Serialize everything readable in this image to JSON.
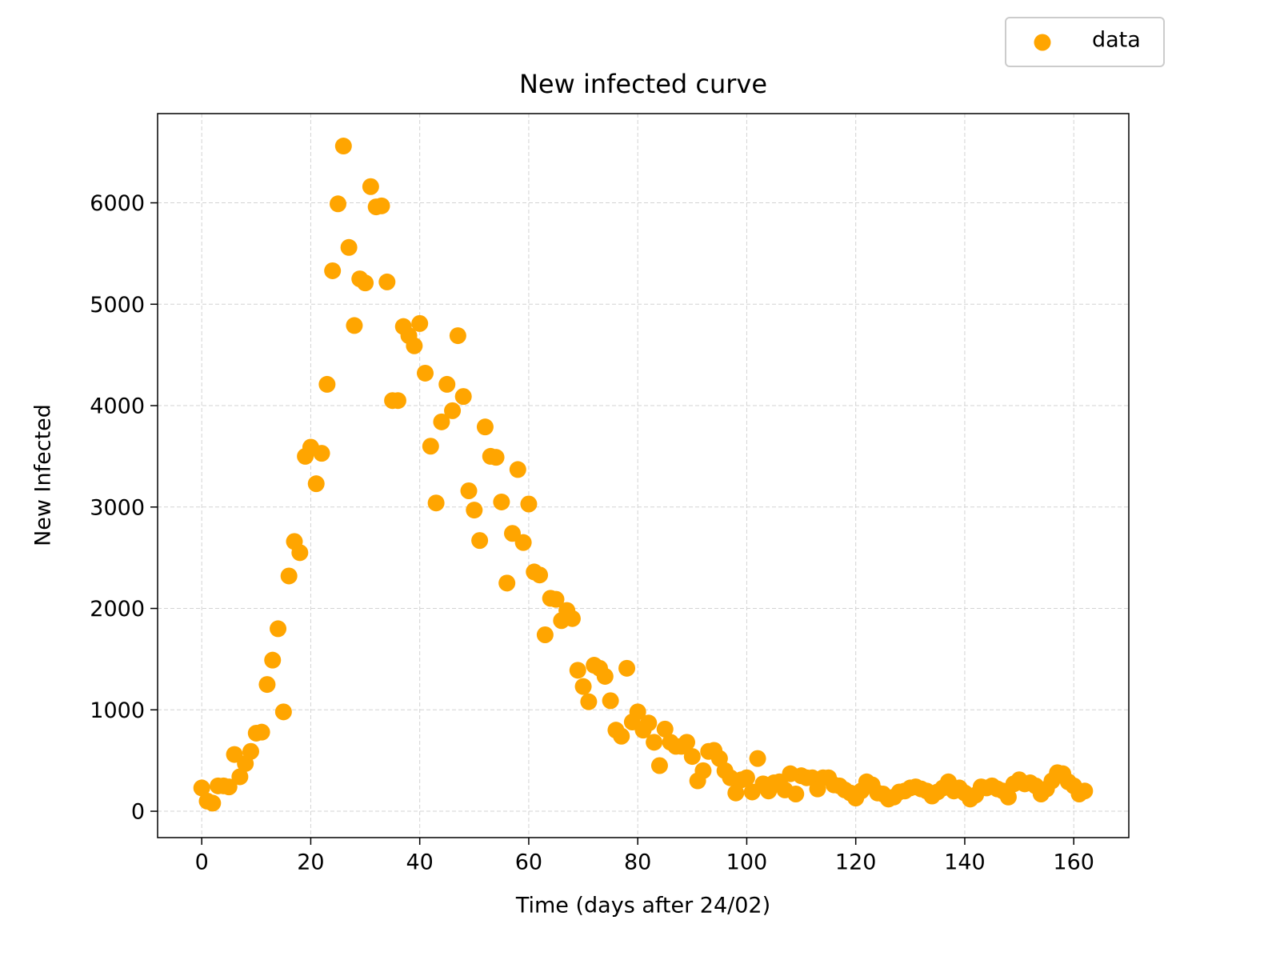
{
  "chart_data": {
    "type": "scatter",
    "title": "New infected curve",
    "x_label": "Time (days after 24/02)",
    "y_label": "New Infected",
    "xlim": [
      -8.1,
      170.1
    ],
    "ylim": [
      -260,
      6880
    ],
    "xticks": [
      0,
      20,
      40,
      60,
      80,
      100,
      120,
      140,
      160
    ],
    "yticks": [
      0,
      1000,
      2000,
      3000,
      4000,
      5000,
      6000
    ],
    "grid": true,
    "legend": "upper right",
    "series": [
      {
        "name": "data",
        "color": "#ffa500",
        "x": [
          0,
          1,
          2,
          3,
          4,
          5,
          6,
          7,
          8,
          9,
          10,
          11,
          12,
          13,
          14,
          15,
          16,
          17,
          18,
          19,
          20,
          21,
          22,
          23,
          24,
          25,
          26,
          27,
          28,
          29,
          30,
          31,
          32,
          33,
          34,
          35,
          36,
          37,
          38,
          39,
          40,
          41,
          42,
          43,
          44,
          45,
          46,
          47,
          48,
          49,
          50,
          51,
          52,
          53,
          54,
          55,
          56,
          57,
          58,
          59,
          60,
          61,
          62,
          63,
          64,
          65,
          66,
          67,
          68,
          69,
          70,
          71,
          72,
          73,
          74,
          75,
          76,
          77,
          78,
          79,
          80,
          81,
          82,
          83,
          84,
          85,
          86,
          87,
          88,
          89,
          90,
          91,
          92,
          93,
          94,
          95,
          96,
          97,
          98,
          99,
          100,
          101,
          102,
          103,
          104,
          105,
          106,
          107,
          108,
          109,
          110,
          111,
          112,
          113,
          114,
          115,
          116,
          117,
          118,
          119,
          120,
          121,
          122,
          123,
          124,
          125,
          126,
          127,
          128,
          129,
          130,
          131,
          132,
          133,
          134,
          135,
          136,
          137,
          138,
          139,
          140,
          141,
          142,
          143,
          144,
          145,
          146,
          147,
          148,
          149,
          150,
          151,
          152,
          153,
          154,
          155,
          156,
          157,
          158,
          159,
          160,
          161,
          162
        ],
        "values": [
          230,
          100,
          80,
          250,
          250,
          240,
          560,
          340,
          470,
          590,
          770,
          780,
          1250,
          1490,
          1800,
          980,
          2320,
          2660,
          2550,
          3500,
          3590,
          3230,
          3530,
          4210,
          5330,
          5990,
          6560,
          5560,
          4790,
          5250,
          5210,
          6160,
          5960,
          5970,
          5220,
          4050,
          4050,
          4780,
          4690,
          4590,
          4810,
          4320,
          3600,
          3040,
          3840,
          4210,
          3950,
          4690,
          4090,
          3160,
          2970,
          2670,
          3790,
          3500,
          3490,
          3050,
          2250,
          2740,
          3370,
          2650,
          3030,
          2360,
          2330,
          1740,
          2100,
          2090,
          1880,
          1980,
          1900,
          1390,
          1230,
          1080,
          1440,
          1410,
          1330,
          1090,
          800,
          740,
          1410,
          880,
          980,
          800,
          870,
          680,
          450,
          810,
          680,
          640,
          640,
          680,
          540,
          300,
          400,
          590,
          600,
          520,
          400,
          330,
          180,
          310,
          330,
          190,
          520,
          270,
          200,
          280,
          290,
          210,
          370,
          170,
          350,
          330,
          330,
          220,
          330,
          330,
          260,
          250,
          210,
          180,
          130,
          200,
          290,
          260,
          180,
          170,
          120,
          140,
          190,
          200,
          230,
          240,
          220,
          200,
          150,
          190,
          230,
          290,
          200,
          230,
          180,
          120,
          160,
          240,
          230,
          250,
          220,
          200,
          140,
          270,
          310,
          270,
          280,
          250,
          170,
          220,
          300,
          380,
          370,
          290,
          250,
          170,
          200
        ]
      }
    ]
  }
}
